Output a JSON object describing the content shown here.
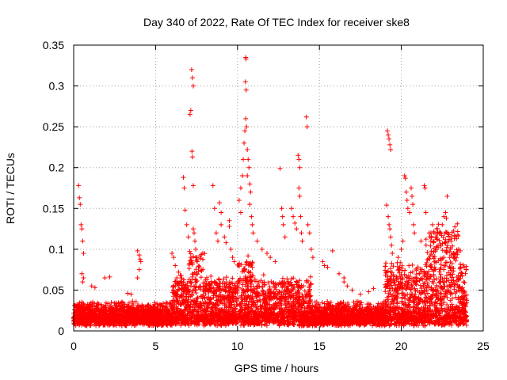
{
  "chart_data": {
    "type": "scatter",
    "title": "Day 340 of 2022, Rate Of TEC Index for receiver ske8",
    "xlabel": "GPS time / hours",
    "ylabel": "ROTI / TECUs",
    "xlim": [
      0,
      25
    ],
    "ylim": [
      0,
      0.35
    ],
    "xticks": [
      "0",
      "5",
      "10",
      "15",
      "20",
      "25"
    ],
    "yticks": [
      "0",
      "0.05",
      "0.1",
      "0.15",
      "0.2",
      "0.25",
      "0.3",
      "0.35"
    ],
    "grid": true,
    "marker": "+",
    "color": "#ff0000",
    "series": [
      {
        "values_note": "",
        "points": [
          [
            0.3,
            0.178
          ],
          [
            0.35,
            0.163
          ],
          [
            0.4,
            0.155
          ],
          [
            0.45,
            0.13
          ],
          [
            0.5,
            0.125
          ],
          [
            0.55,
            0.11
          ],
          [
            0.6,
            0.095
          ],
          [
            0.5,
            0.07
          ],
          [
            0.6,
            0.065
          ],
          [
            0.55,
            0.06
          ],
          [
            1.1,
            0.055
          ],
          [
            1.3,
            0.053
          ],
          [
            1.9,
            0.065
          ],
          [
            2.2,
            0.066
          ],
          [
            3.3,
            0.046
          ],
          [
            3.5,
            0.045
          ],
          [
            3.9,
            0.098
          ],
          [
            4.0,
            0.093
          ],
          [
            4.05,
            0.088
          ],
          [
            4.1,
            0.085
          ],
          [
            4.0,
            0.075
          ],
          [
            3.9,
            0.065
          ],
          [
            6.0,
            0.095
          ],
          [
            6.1,
            0.09
          ],
          [
            6.2,
            0.08
          ],
          [
            6.4,
            0.072
          ],
          [
            6.5,
            0.068
          ],
          [
            6.7,
            0.06
          ],
          [
            6.3,
            0.065
          ],
          [
            6.7,
            0.188
          ],
          [
            6.75,
            0.175
          ],
          [
            6.8,
            0.148
          ],
          [
            6.9,
            0.13
          ],
          [
            7.0,
            0.115
          ],
          [
            7.1,
            0.265
          ],
          [
            7.15,
            0.27
          ],
          [
            7.2,
            0.32
          ],
          [
            7.25,
            0.31
          ],
          [
            7.3,
            0.3
          ],
          [
            7.22,
            0.22
          ],
          [
            7.25,
            0.213
          ],
          [
            7.3,
            0.178
          ],
          [
            7.3,
            0.125
          ],
          [
            7.35,
            0.12
          ],
          [
            7.4,
            0.11
          ],
          [
            7.45,
            0.1
          ],
          [
            7.5,
            0.09
          ],
          [
            7.55,
            0.085
          ],
          [
            8.5,
            0.178
          ],
          [
            8.6,
            0.15
          ],
          [
            8.7,
            0.12
          ],
          [
            8.8,
            0.11
          ],
          [
            8.9,
            0.157
          ],
          [
            9.0,
            0.145
          ],
          [
            9.0,
            0.13
          ],
          [
            9.2,
            0.115
          ],
          [
            9.3,
            0.108
          ],
          [
            9.5,
            0.135
          ],
          [
            9.5,
            0.128
          ],
          [
            9.6,
            0.1
          ],
          [
            9.7,
            0.09
          ],
          [
            9.8,
            0.085
          ],
          [
            10.1,
            0.16
          ],
          [
            10.2,
            0.145
          ],
          [
            10.2,
            0.175
          ],
          [
            10.3,
            0.19
          ],
          [
            10.35,
            0.21
          ],
          [
            10.4,
            0.23
          ],
          [
            10.45,
            0.245
          ],
          [
            10.5,
            0.335
          ],
          [
            10.52,
            0.333
          ],
          [
            10.48,
            0.305
          ],
          [
            10.53,
            0.295
          ],
          [
            10.5,
            0.26
          ],
          [
            10.55,
            0.25
          ],
          [
            10.6,
            0.222
          ],
          [
            10.65,
            0.21
          ],
          [
            10.7,
            0.2
          ],
          [
            10.6,
            0.19
          ],
          [
            10.75,
            0.18
          ],
          [
            10.8,
            0.17
          ],
          [
            10.75,
            0.155
          ],
          [
            10.85,
            0.14
          ],
          [
            10.9,
            0.13
          ],
          [
            10.95,
            0.12
          ],
          [
            11.2,
            0.11
          ],
          [
            11.5,
            0.1
          ],
          [
            11.8,
            0.095
          ],
          [
            12.0,
            0.09
          ],
          [
            12.3,
            0.085
          ],
          [
            12.6,
            0.199
          ],
          [
            12.7,
            0.15
          ],
          [
            12.75,
            0.14
          ],
          [
            12.8,
            0.13
          ],
          [
            12.9,
            0.115
          ],
          [
            13.3,
            0.15
          ],
          [
            13.4,
            0.14
          ],
          [
            13.5,
            0.132
          ],
          [
            13.6,
            0.125
          ],
          [
            13.7,
            0.215
          ],
          [
            13.75,
            0.21
          ],
          [
            13.8,
            0.2
          ],
          [
            13.75,
            0.175
          ],
          [
            13.8,
            0.165
          ],
          [
            13.85,
            0.14
          ],
          [
            13.9,
            0.12
          ],
          [
            13.95,
            0.11
          ],
          [
            14.2,
            0.262
          ],
          [
            14.25,
            0.25
          ],
          [
            14.3,
            0.13
          ],
          [
            14.4,
            0.12
          ],
          [
            14.5,
            0.1
          ],
          [
            14.6,
            0.09
          ],
          [
            15.2,
            0.085
          ],
          [
            15.3,
            0.08
          ],
          [
            15.5,
            0.078
          ],
          [
            15.8,
            0.098
          ],
          [
            16.2,
            0.07
          ],
          [
            16.5,
            0.06
          ],
          [
            16.5,
            0.065
          ],
          [
            16.7,
            0.055
          ],
          [
            17.0,
            0.05
          ],
          [
            17.5,
            0.045
          ],
          [
            18.0,
            0.048
          ],
          [
            18.3,
            0.052
          ],
          [
            19.1,
            0.154
          ],
          [
            19.15,
            0.245
          ],
          [
            19.2,
            0.24
          ],
          [
            19.25,
            0.235
          ],
          [
            19.3,
            0.228
          ],
          [
            19.35,
            0.222
          ],
          [
            19.2,
            0.14
          ],
          [
            19.25,
            0.13
          ],
          [
            19.3,
            0.125
          ],
          [
            19.35,
            0.115
          ],
          [
            19.4,
            0.105
          ],
          [
            19.45,
            0.095
          ],
          [
            19.8,
            0.09
          ],
          [
            20.0,
            0.1
          ],
          [
            20.1,
            0.11
          ],
          [
            20.2,
            0.19
          ],
          [
            20.25,
            0.187
          ],
          [
            20.3,
            0.17
          ],
          [
            20.35,
            0.16
          ],
          [
            20.4,
            0.15
          ],
          [
            20.5,
            0.145
          ],
          [
            20.6,
            0.175
          ],
          [
            20.65,
            0.165
          ],
          [
            20.7,
            0.155
          ],
          [
            20.75,
            0.13
          ],
          [
            20.8,
            0.12
          ],
          [
            21.2,
            0.11
          ],
          [
            21.4,
            0.178
          ],
          [
            21.45,
            0.175
          ],
          [
            21.5,
            0.145
          ],
          [
            21.7,
            0.12
          ],
          [
            21.8,
            0.11
          ],
          [
            21.9,
            0.13
          ],
          [
            22.0,
            0.12
          ],
          [
            22.1,
            0.115
          ],
          [
            22.4,
            0.12
          ],
          [
            22.5,
            0.13
          ],
          [
            22.6,
            0.14
          ],
          [
            22.7,
            0.145
          ],
          [
            22.75,
            0.138
          ],
          [
            22.8,
            0.165
          ],
          [
            22.85,
            0.12
          ],
          [
            22.9,
            0.11
          ],
          [
            23.0,
            0.1
          ],
          [
            23.2,
            0.095
          ],
          [
            23.5,
            0.1
          ],
          [
            23.6,
            0.098
          ],
          [
            23.8,
            0.06
          ]
        ]
      }
    ]
  }
}
